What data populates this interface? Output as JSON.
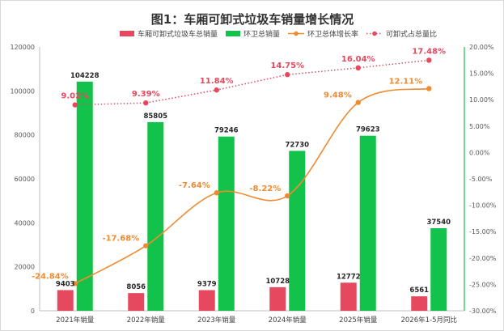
{
  "chart_data": {
    "type": "bar",
    "title": "图1：车厢可卸式垃圾车销量增长情况",
    "categories": [
      "2021年销量",
      "2022年销量",
      "2023年销量",
      "2024年销量",
      "2025年销量",
      "2026年1-5月同比"
    ],
    "series": [
      {
        "name": "车厢可卸式垃圾车总销量",
        "kind": "bar",
        "axis": "left",
        "color": "#e5485f",
        "values": [
          9403,
          8056,
          9379,
          10728,
          12772,
          6561
        ]
      },
      {
        "name": "环卫总销量",
        "kind": "bar",
        "axis": "left",
        "color": "#13c24a",
        "values": [
          104228,
          85805,
          79246,
          72730,
          79623,
          37540
        ]
      },
      {
        "name": "环卫总体增长率",
        "kind": "line",
        "axis": "right",
        "color": "#ef8a31",
        "values": [
          -24.84,
          -17.68,
          -7.64,
          -8.22,
          9.48,
          12.11
        ],
        "labels": [
          "-24.84%",
          "-17.68%",
          "-7.64%",
          "-8.22%",
          "9.48%",
          "12.11%"
        ]
      },
      {
        "name": "可卸式占总量比",
        "kind": "line",
        "axis": "right",
        "color": "#e5485f",
        "dash": true,
        "values": [
          9.02,
          9.39,
          11.84,
          14.75,
          16.04,
          17.48
        ],
        "labels": [
          "9.02%",
          "9.39%",
          "11.84%",
          "14.75%",
          "16.04%",
          "17.48%"
        ]
      }
    ],
    "ylim_left": [
      0,
      120000
    ],
    "yticks_left": [
      "0",
      "20000",
      "40000",
      "60000",
      "80000",
      "100000",
      "120000"
    ],
    "ylim_right": [
      -30,
      20
    ],
    "yticks_right": [
      "-30.00%",
      "-25.00%",
      "-20.00%",
      "-15.00%",
      "-10.00%",
      "-5.00%",
      "0.00%",
      "5.00%",
      "10.00%",
      "15.00%",
      "20.00%"
    ],
    "grid": false,
    "legend_position": "top"
  }
}
